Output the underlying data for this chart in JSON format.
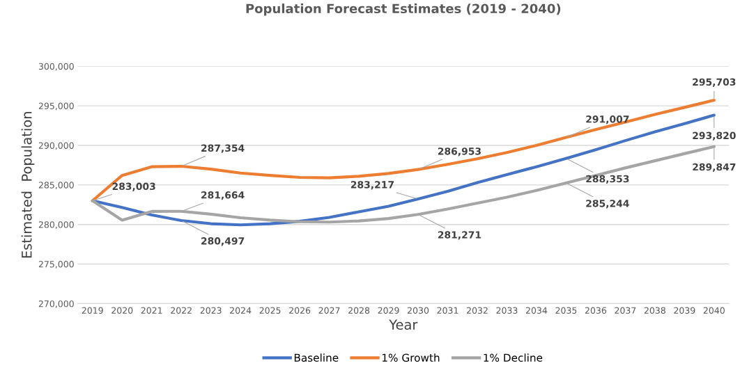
{
  "chart_data": {
    "type": "line",
    "title": "Population Forecast Estimates (2019 - 2040)",
    "xlabel": "Year",
    "ylabel": "Estimated  Population",
    "categories": [
      "2019",
      "2020",
      "2021",
      "2022",
      "2023",
      "2024",
      "2025",
      "2026",
      "2027",
      "2028",
      "2029",
      "2030",
      "2031",
      "2032",
      "2033",
      "2034",
      "2035",
      "2036",
      "2037",
      "2038",
      "2039",
      "2040"
    ],
    "series": [
      {
        "name": "Baseline",
        "color": "#4472c4",
        "values": [
          283003,
          282150,
          281200,
          280497,
          280100,
          279950,
          280100,
          280400,
          280900,
          281600,
          282300,
          283217,
          284200,
          285300,
          286300,
          287300,
          288353,
          289450,
          290600,
          291700,
          292750,
          293820
        ],
        "value_labels": [
          "283,003",
          null,
          null,
          "280,497",
          null,
          null,
          null,
          null,
          null,
          null,
          null,
          "283,217",
          null,
          null,
          null,
          null,
          "288,353",
          null,
          null,
          null,
          null,
          "293,820"
        ]
      },
      {
        "name": "1% Growth",
        "color": "#ed7d31",
        "values": [
          283003,
          286200,
          287300,
          287354,
          287000,
          286500,
          286200,
          285950,
          285900,
          286100,
          286450,
          286953,
          287600,
          288300,
          289100,
          290000,
          291007,
          292000,
          292950,
          293900,
          294800,
          295703
        ],
        "value_labels": [
          null,
          null,
          null,
          "287,354",
          null,
          null,
          null,
          null,
          null,
          null,
          null,
          "286,953",
          null,
          null,
          null,
          null,
          "291,007",
          null,
          null,
          null,
          null,
          "295,703"
        ]
      },
      {
        "name": "1% Decline",
        "color": "#a5a5a5",
        "values": [
          283003,
          280550,
          281650,
          281664,
          281300,
          280850,
          280550,
          280350,
          280300,
          280450,
          280750,
          281271,
          281950,
          282700,
          283450,
          284300,
          285244,
          286200,
          287150,
          288050,
          288950,
          289847
        ],
        "value_labels": [
          null,
          null,
          null,
          "281,664",
          null,
          null,
          null,
          null,
          null,
          null,
          null,
          "281,271",
          null,
          null,
          null,
          null,
          "285,244",
          null,
          null,
          null,
          null,
          "289,847"
        ]
      }
    ],
    "ylim": [
      270000,
      300000
    ],
    "yticks": [
      {
        "value": 270000,
        "label": "270,000"
      },
      {
        "value": 275000,
        "label": "275,000"
      },
      {
        "value": 280000,
        "label": "280,000"
      },
      {
        "value": 285000,
        "label": "285,000"
      },
      {
        "value": 290000,
        "label": "290,000"
      },
      {
        "value": 295000,
        "label": "295,000"
      },
      {
        "value": 300000,
        "label": "300,000"
      }
    ],
    "grid": "y",
    "legend": "bottom",
    "marker": "none",
    "line_style": "solid"
  }
}
